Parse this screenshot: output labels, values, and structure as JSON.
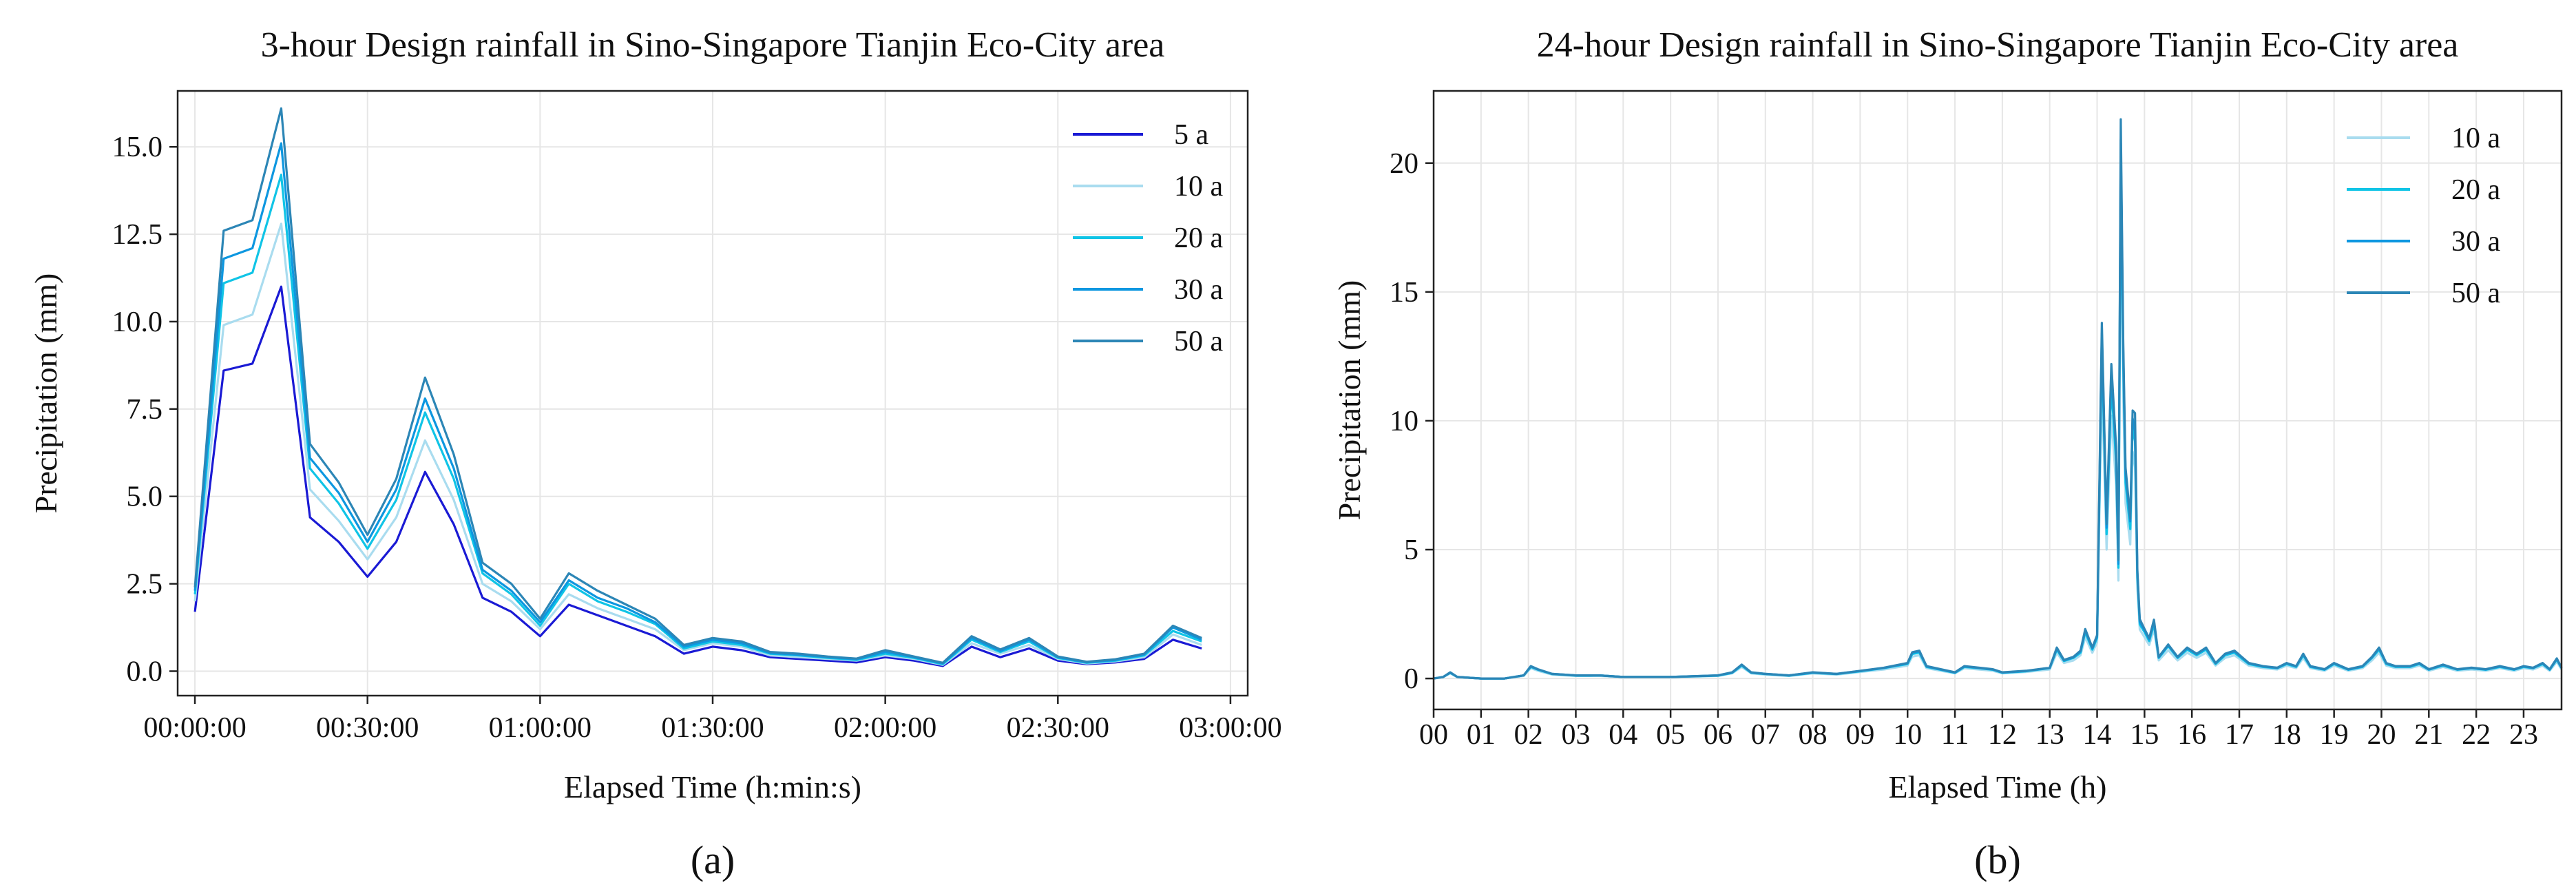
{
  "chart_data": [
    {
      "type": "line",
      "title": "3-hour Design rainfall in Sino-Singapore Tianjin Eco-City area",
      "xlabel": "Elapsed Time (h:min:s)",
      "ylabel": "Precipitation (mm)",
      "panel_label": "(a)",
      "x_unit": "minutes",
      "xlim": [
        -3,
        183
      ],
      "ylim": [
        -0.7,
        16.6
      ],
      "xticks": [
        0,
        30,
        60,
        90,
        120,
        150,
        180
      ],
      "xtick_labels": [
        "00:00:00",
        "00:30:00",
        "01:00:00",
        "01:30:00",
        "02:00:00",
        "02:30:00",
        "03:00:00"
      ],
      "yticks": [
        0,
        2.5,
        5,
        7.5,
        10,
        12.5,
        15
      ],
      "ytick_labels": [
        "0.0",
        "2.5",
        "5.0",
        "7.5",
        "10.0",
        "12.5",
        "15.0"
      ],
      "grid": true,
      "legend_position": "top-right",
      "x": [
        0,
        5,
        10,
        15,
        20,
        25,
        30,
        35,
        40,
        45,
        50,
        55,
        60,
        65,
        70,
        75,
        80,
        85,
        90,
        95,
        100,
        105,
        110,
        115,
        120,
        125,
        130,
        135,
        140,
        145,
        150,
        155,
        160,
        165,
        170,
        175
      ],
      "series": [
        {
          "name": "5 a",
          "color": "#1a1ad4",
          "values": [
            1.7,
            8.6,
            8.8,
            11.0,
            4.4,
            3.7,
            2.7,
            3.7,
            5.7,
            4.2,
            2.1,
            1.7,
            1.0,
            1.9,
            1.6,
            1.3,
            1.0,
            0.5,
            0.7,
            0.6,
            0.4,
            0.35,
            0.3,
            0.25,
            0.4,
            0.3,
            0.15,
            0.7,
            0.4,
            0.65,
            0.3,
            0.2,
            0.25,
            0.35,
            0.9,
            0.65
          ]
        },
        {
          "name": "10 a",
          "color": "#a9dcef",
          "values": [
            2.0,
            9.9,
            10.2,
            12.8,
            5.2,
            4.3,
            3.2,
            4.4,
            6.6,
            4.9,
            2.5,
            2.0,
            1.2,
            2.2,
            1.8,
            1.5,
            1.2,
            0.6,
            0.8,
            0.7,
            0.45,
            0.4,
            0.35,
            0.3,
            0.45,
            0.35,
            0.18,
            0.8,
            0.5,
            0.75,
            0.35,
            0.22,
            0.28,
            0.4,
            1.05,
            0.75
          ]
        },
        {
          "name": "20 a",
          "color": "#10c4e6",
          "values": [
            2.2,
            11.1,
            11.4,
            14.2,
            5.8,
            4.8,
            3.5,
            4.9,
            7.4,
            5.5,
            2.8,
            2.2,
            1.3,
            2.5,
            2.0,
            1.7,
            1.35,
            0.65,
            0.85,
            0.75,
            0.5,
            0.45,
            0.38,
            0.32,
            0.5,
            0.38,
            0.2,
            0.9,
            0.55,
            0.85,
            0.38,
            0.24,
            0.3,
            0.45,
            1.15,
            0.85
          ]
        },
        {
          "name": "30 a",
          "color": "#0d97e0",
          "values": [
            2.3,
            11.8,
            12.1,
            15.1,
            6.1,
            5.1,
            3.7,
            5.2,
            7.8,
            5.8,
            2.9,
            2.3,
            1.4,
            2.6,
            2.1,
            1.8,
            1.4,
            0.7,
            0.9,
            0.8,
            0.52,
            0.47,
            0.4,
            0.34,
            0.55,
            0.4,
            0.22,
            0.95,
            0.58,
            0.9,
            0.4,
            0.25,
            0.32,
            0.48,
            1.25,
            0.9
          ]
        },
        {
          "name": "50 a",
          "color": "#2c86b6",
          "values": [
            2.4,
            12.6,
            12.9,
            16.1,
            6.5,
            5.4,
            3.9,
            5.5,
            8.4,
            6.2,
            3.1,
            2.5,
            1.5,
            2.8,
            2.3,
            1.9,
            1.5,
            0.75,
            0.95,
            0.85,
            0.55,
            0.5,
            0.42,
            0.36,
            0.6,
            0.42,
            0.24,
            1.0,
            0.62,
            0.95,
            0.42,
            0.27,
            0.34,
            0.5,
            1.3,
            0.95
          ]
        }
      ]
    },
    {
      "type": "line",
      "title": "24-hour Design rainfall in Sino-Singapore Tianjin Eco-City area",
      "xlabel": "Elapsed Time (h)",
      "ylabel": "Precipitation (mm)",
      "panel_label": "(b)",
      "x_unit": "hours",
      "xlim": [
        0,
        23.8
      ],
      "ylim": [
        -1.2,
        22.8
      ],
      "xticks": [
        0,
        1,
        2,
        3,
        4,
        5,
        6,
        7,
        8,
        9,
        10,
        11,
        12,
        13,
        14,
        15,
        16,
        17,
        18,
        19,
        20,
        21,
        22,
        23
      ],
      "xtick_labels": [
        "00",
        "01",
        "02",
        "03",
        "04",
        "05",
        "06",
        "07",
        "08",
        "09",
        "10",
        "11",
        "12",
        "13",
        "14",
        "15",
        "16",
        "17",
        "18",
        "19",
        "20",
        "21",
        "22",
        "23"
      ],
      "yticks": [
        0,
        5,
        10,
        15,
        20
      ],
      "ytick_labels": [
        "0",
        "5",
        "10",
        "15",
        "20"
      ],
      "grid": true,
      "legend_position": "top-right",
      "x": [
        0,
        0.2,
        0.35,
        0.5,
        1.0,
        1.5,
        1.9,
        2.05,
        2.2,
        2.5,
        3.0,
        3.3,
        3.5,
        4.0,
        5.0,
        6.0,
        6.3,
        6.5,
        6.7,
        7.0,
        7.5,
        8.0,
        8.5,
        9.0,
        9.5,
        10.0,
        10.1,
        10.25,
        10.4,
        10.7,
        11.0,
        11.2,
        11.5,
        11.8,
        12.0,
        12.5,
        13.0,
        13.15,
        13.3,
        13.5,
        13.65,
        13.75,
        13.9,
        14.0,
        14.1,
        14.2,
        14.3,
        14.4,
        14.45,
        14.5,
        14.55,
        14.6,
        14.7,
        14.75,
        14.8,
        14.85,
        14.9,
        15.0,
        15.1,
        15.2,
        15.3,
        15.5,
        15.7,
        15.9,
        16.1,
        16.3,
        16.5,
        16.7,
        16.9,
        17.2,
        17.5,
        17.8,
        18.0,
        18.2,
        18.35,
        18.5,
        18.8,
        19.0,
        19.3,
        19.6,
        19.8,
        19.95,
        20.1,
        20.3,
        20.6,
        20.8,
        21.0,
        21.3,
        21.6,
        21.9,
        22.2,
        22.5,
        22.8,
        23.0,
        23.2,
        23.4,
        23.55,
        23.7,
        23.8
      ],
      "series": [
        {
          "name": "10 a",
          "color": "#a9dcef",
          "values": [
            0,
            0.05,
            0.2,
            0.05,
            0,
            0,
            0.1,
            0.4,
            0.3,
            0.15,
            0.1,
            0.1,
            0.1,
            0.05,
            0.05,
            0.1,
            0.2,
            0.45,
            0.2,
            0.15,
            0.1,
            0.2,
            0.15,
            0.25,
            0.35,
            0.5,
            0.85,
            0.9,
            0.4,
            0.3,
            0.2,
            0.4,
            0.35,
            0.3,
            0.2,
            0.25,
            0.35,
            1.0,
            0.6,
            0.7,
            0.9,
            1.6,
            1.0,
            1.4,
            11.5,
            5.0,
            10.2,
            7.5,
            3.8,
            18.5,
            11.0,
            6.8,
            5.2,
            8.8,
            8.2,
            3.5,
            1.9,
            1.6,
            1.3,
            1.9,
            0.7,
            1.1,
            0.7,
            1.0,
            0.8,
            1.0,
            0.5,
            0.8,
            0.9,
            0.5,
            0.4,
            0.35,
            0.5,
            0.4,
            0.8,
            0.4,
            0.3,
            0.5,
            0.3,
            0.4,
            0.7,
            1.0,
            0.5,
            0.4,
            0.4,
            0.5,
            0.3,
            0.45,
            0.3,
            0.35,
            0.3,
            0.4,
            0.3,
            0.4,
            0.35,
            0.5,
            0.3,
            0.65,
            0.35
          ]
        },
        {
          "name": "20 a",
          "color": "#10c4e6",
          "values": [
            0,
            0.06,
            0.22,
            0.06,
            0,
            0,
            0.12,
            0.45,
            0.34,
            0.17,
            0.11,
            0.11,
            0.12,
            0.06,
            0.06,
            0.11,
            0.22,
            0.5,
            0.22,
            0.17,
            0.11,
            0.22,
            0.17,
            0.28,
            0.4,
            0.56,
            0.95,
            1.0,
            0.45,
            0.34,
            0.22,
            0.45,
            0.4,
            0.34,
            0.22,
            0.28,
            0.4,
            1.12,
            0.68,
            0.8,
            1.0,
            1.8,
            1.12,
            1.58,
            12.9,
            5.6,
            11.4,
            8.4,
            4.3,
            20.1,
            12.3,
            7.6,
            5.8,
            9.8,
            9.2,
            3.9,
            2.1,
            1.8,
            1.45,
            2.1,
            0.8,
            1.25,
            0.8,
            1.12,
            0.9,
            1.12,
            0.56,
            0.9,
            1.0,
            0.56,
            0.45,
            0.4,
            0.56,
            0.45,
            0.9,
            0.45,
            0.34,
            0.56,
            0.34,
            0.45,
            0.8,
            1.12,
            0.56,
            0.45,
            0.45,
            0.56,
            0.34,
            0.5,
            0.34,
            0.4,
            0.34,
            0.45,
            0.34,
            0.45,
            0.4,
            0.56,
            0.34,
            0.73,
            0.4
          ]
        },
        {
          "name": "30 a",
          "color": "#0d97e0",
          "values": [
            0,
            0.06,
            0.23,
            0.06,
            0,
            0,
            0.12,
            0.47,
            0.35,
            0.18,
            0.12,
            0.12,
            0.12,
            0.06,
            0.06,
            0.12,
            0.23,
            0.53,
            0.23,
            0.18,
            0.12,
            0.23,
            0.18,
            0.29,
            0.41,
            0.59,
            1.0,
            1.05,
            0.47,
            0.35,
            0.23,
            0.47,
            0.41,
            0.35,
            0.23,
            0.29,
            0.41,
            1.17,
            0.7,
            0.82,
            1.05,
            1.87,
            1.17,
            1.64,
            13.4,
            5.85,
            11.9,
            8.8,
            4.45,
            20.9,
            12.8,
            7.95,
            6.1,
            10.1,
            9.6,
            4.1,
            2.2,
            1.87,
            1.52,
            2.2,
            0.82,
            1.29,
            0.82,
            1.17,
            0.94,
            1.17,
            0.59,
            0.94,
            1.05,
            0.59,
            0.47,
            0.41,
            0.59,
            0.47,
            0.94,
            0.47,
            0.35,
            0.59,
            0.35,
            0.47,
            0.82,
            1.17,
            0.59,
            0.47,
            0.47,
            0.59,
            0.35,
            0.53,
            0.35,
            0.41,
            0.35,
            0.47,
            0.35,
            0.47,
            0.41,
            0.59,
            0.35,
            0.76,
            0.41
          ]
        },
        {
          "name": "50 a",
          "color": "#2c86b6",
          "values": [
            0,
            0.06,
            0.24,
            0.06,
            0,
            0,
            0.12,
            0.48,
            0.36,
            0.18,
            0.12,
            0.12,
            0.12,
            0.06,
            0.06,
            0.12,
            0.24,
            0.54,
            0.24,
            0.18,
            0.12,
            0.24,
            0.18,
            0.3,
            0.42,
            0.6,
            1.02,
            1.08,
            0.48,
            0.36,
            0.24,
            0.48,
            0.42,
            0.36,
            0.24,
            0.3,
            0.42,
            1.2,
            0.72,
            0.84,
            1.08,
            1.92,
            1.2,
            1.68,
            13.8,
            6.0,
            12.2,
            9.0,
            4.6,
            21.7,
            13.2,
            8.2,
            6.2,
            10.4,
            10.3,
            4.2,
            2.3,
            1.92,
            1.56,
            2.28,
            0.84,
            1.32,
            0.84,
            1.2,
            0.96,
            1.2,
            0.6,
            0.96,
            1.08,
            0.6,
            0.48,
            0.42,
            0.6,
            0.48,
            0.96,
            0.48,
            0.36,
            0.6,
            0.36,
            0.48,
            0.84,
            1.2,
            0.6,
            0.48,
            0.48,
            0.6,
            0.36,
            0.54,
            0.36,
            0.42,
            0.36,
            0.48,
            0.36,
            0.48,
            0.42,
            0.6,
            0.36,
            0.78,
            0.42
          ]
        }
      ]
    }
  ]
}
